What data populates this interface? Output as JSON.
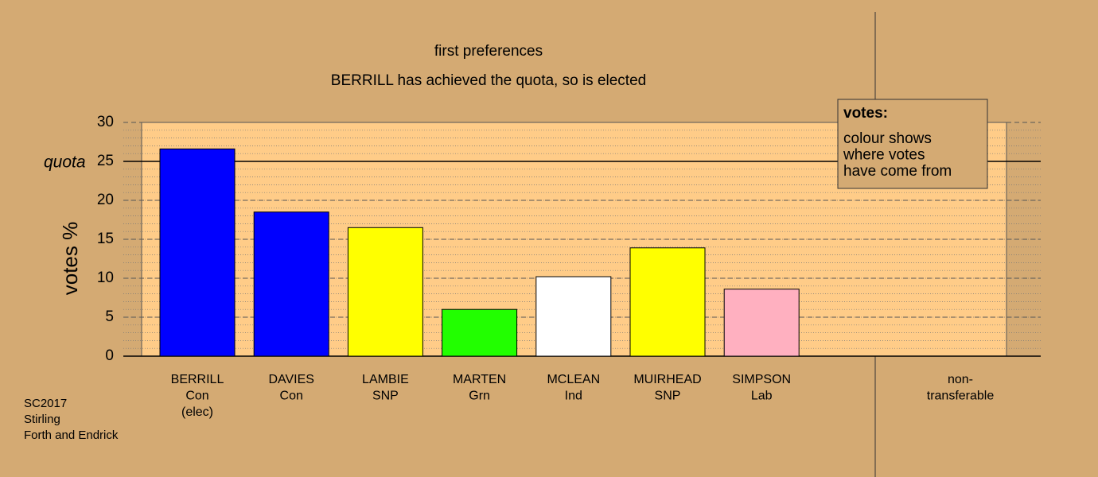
{
  "chart_data": {
    "type": "bar",
    "title": "first preferences",
    "subtitle": "BERRILL has achieved the quota, so is elected",
    "y_label": "votes %",
    "categories": [
      [
        "BERRILL",
        "Con",
        "(elec)"
      ],
      [
        "DAVIES",
        "Con"
      ],
      [
        "LAMBIE",
        "SNP"
      ],
      [
        "MARTEN",
        "Grn"
      ],
      [
        "MCLEAN",
        "Ind"
      ],
      [
        "MUIRHEAD",
        "SNP"
      ],
      [
        "SIMPSON",
        "Lab"
      ],
      [
        "non-",
        "transferable"
      ]
    ],
    "values": [
      26.6,
      18.5,
      16.5,
      6.0,
      10.2,
      13.9,
      8.6,
      null
    ],
    "colors": [
      "#0000ff",
      "#0000ff",
      "#ffff00",
      "#22ff00",
      "#ffffff",
      "#ffff00",
      "#ffb0c0",
      null
    ],
    "ylim": [
      0,
      30
    ],
    "yticks": [
      0,
      5,
      10,
      15,
      20,
      25,
      30
    ],
    "minor_grid_step": 1,
    "grid": true,
    "quota": {
      "label": "quota",
      "value": 25
    },
    "legend": {
      "title": "votes:",
      "lines": [
        "colour shows",
        "where votes",
        "have come from"
      ]
    },
    "footer": [
      "SC2017",
      "Stirling",
      "Forth and Endrick"
    ]
  }
}
